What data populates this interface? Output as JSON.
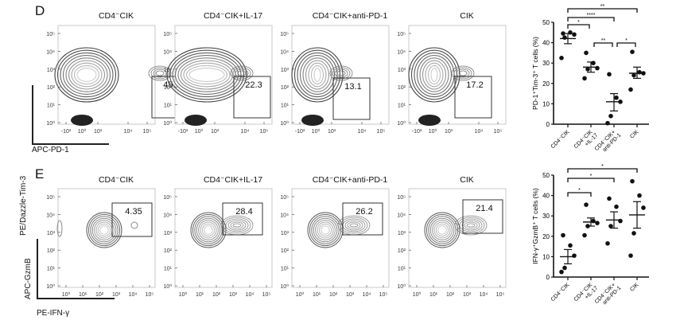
{
  "panels": [
    {
      "letter": "D",
      "y_marker": "PE/Dazzle-Tim-3",
      "x_marker": "APC-PD-1",
      "y_ticks": [
        "10⁵",
        "10⁴",
        "10³",
        "10²",
        "10¹",
        "10⁰"
      ],
      "x_ticks": [
        "-10³",
        "10⁰",
        "10³",
        "10⁴",
        "10⁵"
      ],
      "plots": [
        {
          "title": "CD4⁻CIK",
          "gate": "45.6"
        },
        {
          "title": "CD4⁻CIK+IL-17",
          "gate": "22.3"
        },
        {
          "title": "CD4⁻CIK+anti-PD-1",
          "gate": "13.1"
        },
        {
          "title": "CIK",
          "gate": "17.2"
        }
      ]
    },
    {
      "letter": "E",
      "y_marker": "APC-GzmB",
      "x_marker": "PE-IFN-γ",
      "y_ticks": [
        "10⁵",
        "10⁴",
        "10³",
        "10²",
        "10¹",
        "10⁰"
      ],
      "x_ticks": [
        "10⁰",
        "10¹",
        "10²",
        "10³",
        "10⁴",
        "10⁵"
      ],
      "plots": [
        {
          "title": "CD4⁻CIK",
          "gate": "4.35"
        },
        {
          "title": "CD4⁻CIK+IL-17",
          "gate": "28.4"
        },
        {
          "title": "CD4⁻CIK+anti-PD-1",
          "gate": "26.2"
        },
        {
          "title": "CIK",
          "gate": "21.4"
        }
      ]
    }
  ],
  "chart_data": [
    {
      "type": "scatter",
      "title": "",
      "ylabel": "PD-1⁺Tim-3⁺ T cells (%)",
      "xlabel": "",
      "ylim": [
        0,
        50
      ],
      "yticks": [
        "0",
        "10",
        "20",
        "30",
        "40",
        "50"
      ],
      "categories": [
        "CD4⁻CIK",
        "CD4⁻CIK +IL-17",
        "CD4⁻CIK+ anti-PD-1",
        "CIK"
      ],
      "series": [
        {
          "name": "CD4⁻CIK",
          "values": [
            44.5,
            45,
            44,
            42.5,
            32.5
          ],
          "mean": 42,
          "sem_low": 39.5,
          "sem_high": 44.5
        },
        {
          "name": "CD4⁻CIK+IL-17",
          "values": [
            35,
            30,
            27.5,
            27,
            22.5
          ],
          "mean": 28,
          "sem_low": 25.5,
          "sem_high": 30.5
        },
        {
          "name": "CD4⁻CIK+anti-PD-1",
          "values": [
            24.5,
            13,
            11,
            4,
            0.5
          ],
          "mean": 11,
          "sem_low": 6.5,
          "sem_high": 15
        },
        {
          "name": "CIK",
          "values": [
            35.5,
            25.5,
            25,
            24,
            17
          ],
          "mean": 25,
          "sem_low": 22.5,
          "sem_high": 28
        }
      ],
      "significance": [
        {
          "from": 0,
          "to": 3,
          "label": "**"
        },
        {
          "from": 0,
          "to": 2,
          "label": "****"
        },
        {
          "from": 0,
          "to": 1,
          "label": "*"
        },
        {
          "from": 1,
          "to": 2,
          "label": "**"
        },
        {
          "from": 2,
          "to": 3,
          "label": "*"
        }
      ]
    },
    {
      "type": "scatter",
      "title": "",
      "ylabel": "IFN-γ⁺GzmB⁺ T cells (%)",
      "xlabel": "",
      "ylim": [
        0,
        50
      ],
      "yticks": [
        "0",
        "10",
        "20",
        "30",
        "40",
        "50"
      ],
      "categories": [
        "CD4⁻CIK",
        "CD4⁻CIK +IL-17",
        "CD4⁻CIK+ anti-PD-1",
        "CIK"
      ],
      "series": [
        {
          "name": "CD4⁻CIK",
          "values": [
            20.5,
            15.5,
            10.5,
            4.5,
            2.5
          ],
          "mean": 10,
          "sem_low": 6.5,
          "sem_high": 13.5
        },
        {
          "name": "CD4⁻CIK+IL-17",
          "values": [
            35.5,
            27.5,
            26.5,
            25,
            20.5
          ],
          "mean": 27,
          "sem_low": 25,
          "sem_high": 29
        },
        {
          "name": "CD4⁻CIK+anti-PD-1",
          "values": [
            38.5,
            34.5,
            27.5,
            25,
            16.5
          ],
          "mean": 28,
          "sem_low": 24,
          "sem_high": 32
        },
        {
          "name": "CIK",
          "values": [
            47,
            40,
            34,
            21.5,
            10.5
          ],
          "mean": 30.5,
          "sem_low": 24,
          "sem_high": 37
        }
      ],
      "significance": [
        {
          "from": 0,
          "to": 3,
          "label": "*"
        },
        {
          "from": 0,
          "to": 2,
          "label": "*"
        },
        {
          "from": 0,
          "to": 1,
          "label": "*"
        }
      ]
    }
  ]
}
